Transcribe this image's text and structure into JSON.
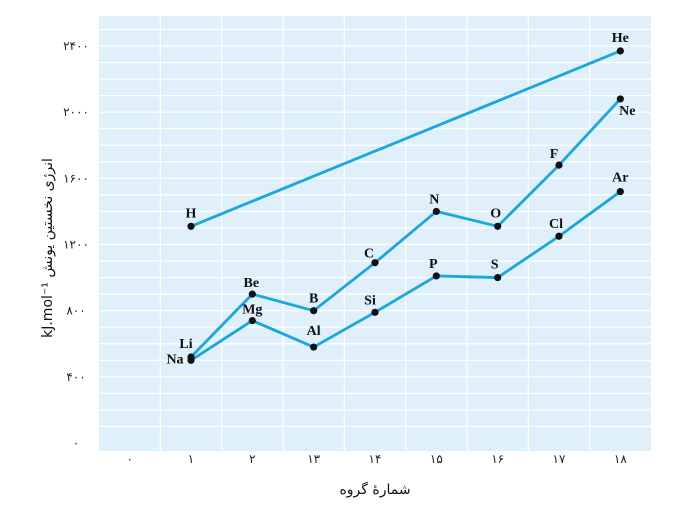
{
  "chart_data": {
    "type": "line",
    "xlabel": "شمارهٔ گروه",
    "ylabel": "انرژی نخستین یونش kJ.mol⁻¹",
    "x_ticks": [
      "۰",
      "۱",
      "۲",
      "۱۳",
      "۱۴",
      "۱۵",
      "۱۶",
      "۱۷",
      "۱۸"
    ],
    "y_ticks": [
      "۰",
      "۴۰۰",
      "۸۰۰",
      "۱۲۰۰",
      "۱۶۰۰",
      "۲۰۰۰",
      "۲۴۰۰"
    ],
    "ylim": [
      0,
      2400
    ],
    "grid": true,
    "background": "#dff0fa",
    "line_color": "#1aa6df",
    "series": [
      {
        "name": "",
        "points": [
          {
            "group": "۱",
            "label": "H",
            "value": 1310
          },
          {
            "group": "۱۸",
            "label": "He",
            "value": 2370
          }
        ]
      },
      {
        "name": "",
        "points": [
          {
            "group": "۱",
            "label": "Li",
            "value": 520
          },
          {
            "group": "۲",
            "label": "Be",
            "value": 900
          },
          {
            "group": "۱۳",
            "label": "B",
            "value": 800
          },
          {
            "group": "۱۴",
            "label": "C",
            "value": 1090
          },
          {
            "group": "۱۵",
            "label": "N",
            "value": 1400
          },
          {
            "group": "۱۶",
            "label": "O",
            "value": 1310
          },
          {
            "group": "۱۷",
            "label": "F",
            "value": 1680
          },
          {
            "group": "۱۸",
            "label": "Ne",
            "value": 2080
          }
        ]
      },
      {
        "name": "",
        "points": [
          {
            "group": "۱",
            "label": "Na",
            "value": 500
          },
          {
            "group": "۲",
            "label": "Mg",
            "value": 740
          },
          {
            "group": "۱۳",
            "label": "Al",
            "value": 580
          },
          {
            "group": "۱۴",
            "label": "Si",
            "value": 790
          },
          {
            "group": "۱۵",
            "label": "P",
            "value": 1010
          },
          {
            "group": "۱۶",
            "label": "S",
            "value": 1000
          },
          {
            "group": "۱۷",
            "label": "Cl",
            "value": 1250
          },
          {
            "group": "۱۸",
            "label": "Ar",
            "value": 1520
          }
        ]
      }
    ]
  }
}
